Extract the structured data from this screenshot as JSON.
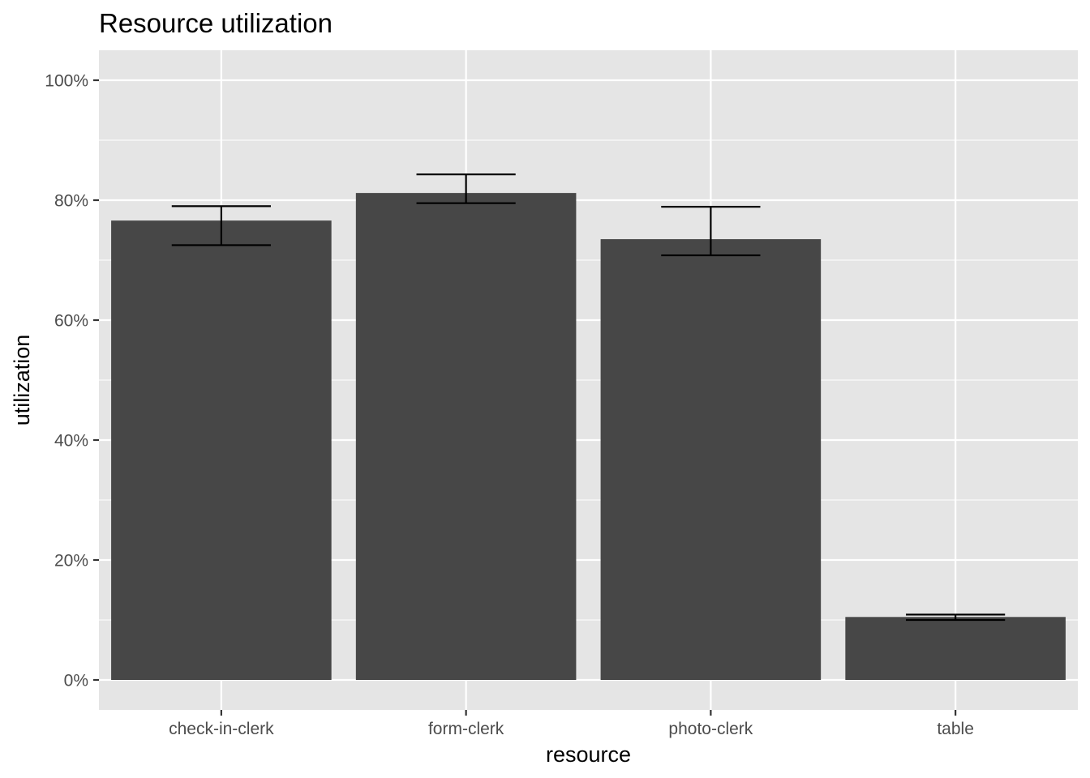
{
  "chart_data": {
    "type": "bar",
    "title": "Resource utilization",
    "xlabel": "resource",
    "ylabel": "utilization",
    "categories": [
      "check-in-clerk",
      "form-clerk",
      "photo-clerk",
      "table"
    ],
    "values": [
      0.766,
      0.812,
      0.735,
      0.105
    ],
    "error_low": [
      0.725,
      0.795,
      0.708,
      0.1
    ],
    "error_high": [
      0.79,
      0.843,
      0.789,
      0.109
    ],
    "ylim": [
      -0.05,
      1.05
    ],
    "yticks": [
      0,
      0.2,
      0.4,
      0.6,
      0.8,
      1.0
    ],
    "ytick_labels": [
      "0%",
      "20%",
      "40%",
      "60%",
      "80%",
      "100%"
    ],
    "grid": true,
    "colors": {
      "bar": "#474747",
      "panel": "#e5e5e5",
      "grid": "#ffffff",
      "error_bar": "#000000",
      "tick": "#333333",
      "tick_label": "#4d4d4d"
    }
  }
}
